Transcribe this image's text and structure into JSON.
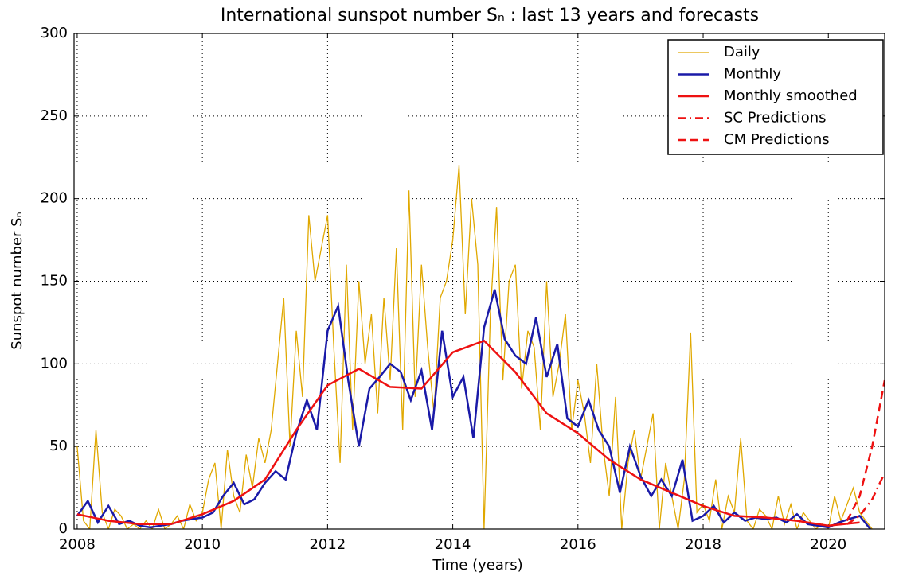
{
  "chart_data": {
    "type": "line",
    "title": "International sunspot number Sₙ : last 13 years and forecasts",
    "xlabel": "Time (years)",
    "ylabel": "Sunspot number Sₙ",
    "xlim": [
      2007.95,
      2020.9
    ],
    "ylim": [
      0,
      300
    ],
    "xticks": [
      2008,
      2010,
      2012,
      2014,
      2016,
      2018,
      2020
    ],
    "yticks": [
      0,
      50,
      100,
      150,
      200,
      250,
      300
    ],
    "grid": true,
    "legend": "upper right",
    "series": [
      {
        "name": "Daily",
        "color": "#e0a800",
        "style": "solid",
        "x": [
          2008,
          2008.1,
          2008.2,
          2008.3,
          2008.4,
          2008.5,
          2008.6,
          2008.7,
          2008.8,
          2008.9,
          2009,
          2009.1,
          2009.2,
          2009.3,
          2009.4,
          2009.5,
          2009.6,
          2009.7,
          2009.8,
          2009.9,
          2010,
          2010.1,
          2010.2,
          2010.3,
          2010.4,
          2010.5,
          2010.6,
          2010.7,
          2010.8,
          2010.9,
          2011,
          2011.1,
          2011.2,
          2011.3,
          2011.4,
          2011.5,
          2011.6,
          2011.7,
          2011.8,
          2011.9,
          2012,
          2012.1,
          2012.2,
          2012.3,
          2012.4,
          2012.5,
          2012.6,
          2012.7,
          2012.8,
          2012.9,
          2013,
          2013.1,
          2013.2,
          2013.3,
          2013.4,
          2013.5,
          2013.6,
          2013.7,
          2013.8,
          2013.9,
          2014,
          2014.1,
          2014.2,
          2014.3,
          2014.4,
          2014.5,
          2014.6,
          2014.7,
          2014.8,
          2014.9,
          2015,
          2015.1,
          2015.2,
          2015.3,
          2015.4,
          2015.5,
          2015.6,
          2015.7,
          2015.8,
          2015.9,
          2016,
          2016.1,
          2016.2,
          2016.3,
          2016.4,
          2016.5,
          2016.6,
          2016.7,
          2016.8,
          2016.9,
          2017,
          2017.1,
          2017.2,
          2017.3,
          2017.4,
          2017.5,
          2017.6,
          2017.7,
          2017.8,
          2017.9,
          2018,
          2018.1,
          2018.2,
          2018.3,
          2018.4,
          2018.5,
          2018.6,
          2018.7,
          2018.8,
          2018.9,
          2019,
          2019.1,
          2019.2,
          2019.3,
          2019.4,
          2019.5,
          2019.6,
          2019.7,
          2019.8,
          2019.9,
          2020,
          2020.1,
          2020.2,
          2020.3,
          2020.4,
          2020.5,
          2020.6,
          2020.7
        ],
        "values": [
          50,
          5,
          0,
          60,
          10,
          0,
          12,
          8,
          0,
          3,
          0,
          5,
          0,
          12,
          0,
          3,
          8,
          0,
          15,
          5,
          10,
          30,
          40,
          0,
          48,
          20,
          10,
          45,
          25,
          55,
          40,
          60,
          100,
          140,
          50,
          120,
          80,
          190,
          150,
          170,
          190,
          110,
          40,
          160,
          60,
          150,
          100,
          130,
          70,
          140,
          90,
          170,
          60,
          205,
          80,
          160,
          110,
          70,
          140,
          150,
          175,
          220,
          130,
          200,
          160,
          0,
          130,
          195,
          90,
          150,
          160,
          85,
          120,
          110,
          60,
          150,
          80,
          100,
          130,
          60,
          90,
          70,
          40,
          100,
          50,
          20,
          80,
          0,
          40,
          60,
          30,
          50,
          70,
          0,
          40,
          20,
          0,
          30,
          119,
          10,
          15,
          5,
          30,
          0,
          20,
          10,
          55,
          5,
          0,
          12,
          8,
          0,
          20,
          3,
          15,
          0,
          10,
          5,
          0,
          3,
          0,
          20,
          5,
          15,
          25,
          10,
          5,
          0
        ]
      },
      {
        "name": "Monthly",
        "color": "#1a1aa8",
        "style": "solid",
        "x": [
          2008,
          2008.17,
          2008.33,
          2008.5,
          2008.67,
          2008.83,
          2009,
          2009.17,
          2009.33,
          2009.5,
          2009.67,
          2009.83,
          2010,
          2010.17,
          2010.33,
          2010.5,
          2010.67,
          2010.83,
          2011,
          2011.17,
          2011.33,
          2011.5,
          2011.67,
          2011.83,
          2012,
          2012.17,
          2012.33,
          2012.5,
          2012.67,
          2012.83,
          2013,
          2013.17,
          2013.33,
          2013.5,
          2013.67,
          2013.83,
          2014,
          2014.17,
          2014.33,
          2014.5,
          2014.67,
          2014.83,
          2015,
          2015.17,
          2015.33,
          2015.5,
          2015.67,
          2015.83,
          2016,
          2016.17,
          2016.33,
          2016.5,
          2016.67,
          2016.83,
          2017,
          2017.17,
          2017.33,
          2017.5,
          2017.67,
          2017.83,
          2018,
          2018.17,
          2018.33,
          2018.5,
          2018.67,
          2018.83,
          2019,
          2019.17,
          2019.33,
          2019.5,
          2019.67,
          2019.83,
          2020,
          2020.17,
          2020.33,
          2020.5,
          2020.67
        ],
        "values": [
          8,
          17,
          4,
          14,
          3,
          5,
          2,
          1,
          2,
          3,
          5,
          6,
          7,
          10,
          20,
          28,
          15,
          18,
          28,
          35,
          30,
          58,
          78,
          60,
          120,
          135,
          90,
          50,
          85,
          92,
          100,
          95,
          78,
          96,
          60,
          120,
          80,
          92,
          55,
          122,
          145,
          115,
          105,
          100,
          128,
          92,
          112,
          67,
          62,
          78,
          60,
          50,
          22,
          50,
          32,
          20,
          30,
          20,
          42,
          5,
          8,
          14,
          4,
          10,
          5,
          7,
          6,
          7,
          4,
          9,
          3,
          2,
          1,
          4,
          6,
          8,
          0
        ]
      },
      {
        "name": "Monthly smoothed",
        "color": "#ee1111",
        "style": "solid",
        "x": [
          2008,
          2008.5,
          2009,
          2009.5,
          2010,
          2010.5,
          2011,
          2011.5,
          2012,
          2012.5,
          2013,
          2013.5,
          2014,
          2014.5,
          2015,
          2015.5,
          2016,
          2016.5,
          2017,
          2017.5,
          2018,
          2018.5,
          2019,
          2019.5,
          2020,
          2020.5
        ],
        "values": [
          9,
          5,
          3,
          3,
          9,
          17,
          30,
          60,
          87,
          97,
          86,
          85,
          107,
          114,
          95,
          70,
          58,
          42,
          30,
          22,
          14,
          8,
          7,
          5,
          2,
          4
        ]
      },
      {
        "name": "SC Predictions",
        "color": "#ee1111",
        "style": "dashdot",
        "x": [
          2020.3,
          2020.5,
          2020.7,
          2020.9
        ],
        "values": [
          3,
          8,
          18,
          34
        ]
      },
      {
        "name": "CM Predictions",
        "color": "#ee1111",
        "style": "dashed",
        "x": [
          2020.3,
          2020.5,
          2020.7,
          2020.9
        ],
        "values": [
          5,
          20,
          50,
          90
        ]
      }
    ]
  }
}
